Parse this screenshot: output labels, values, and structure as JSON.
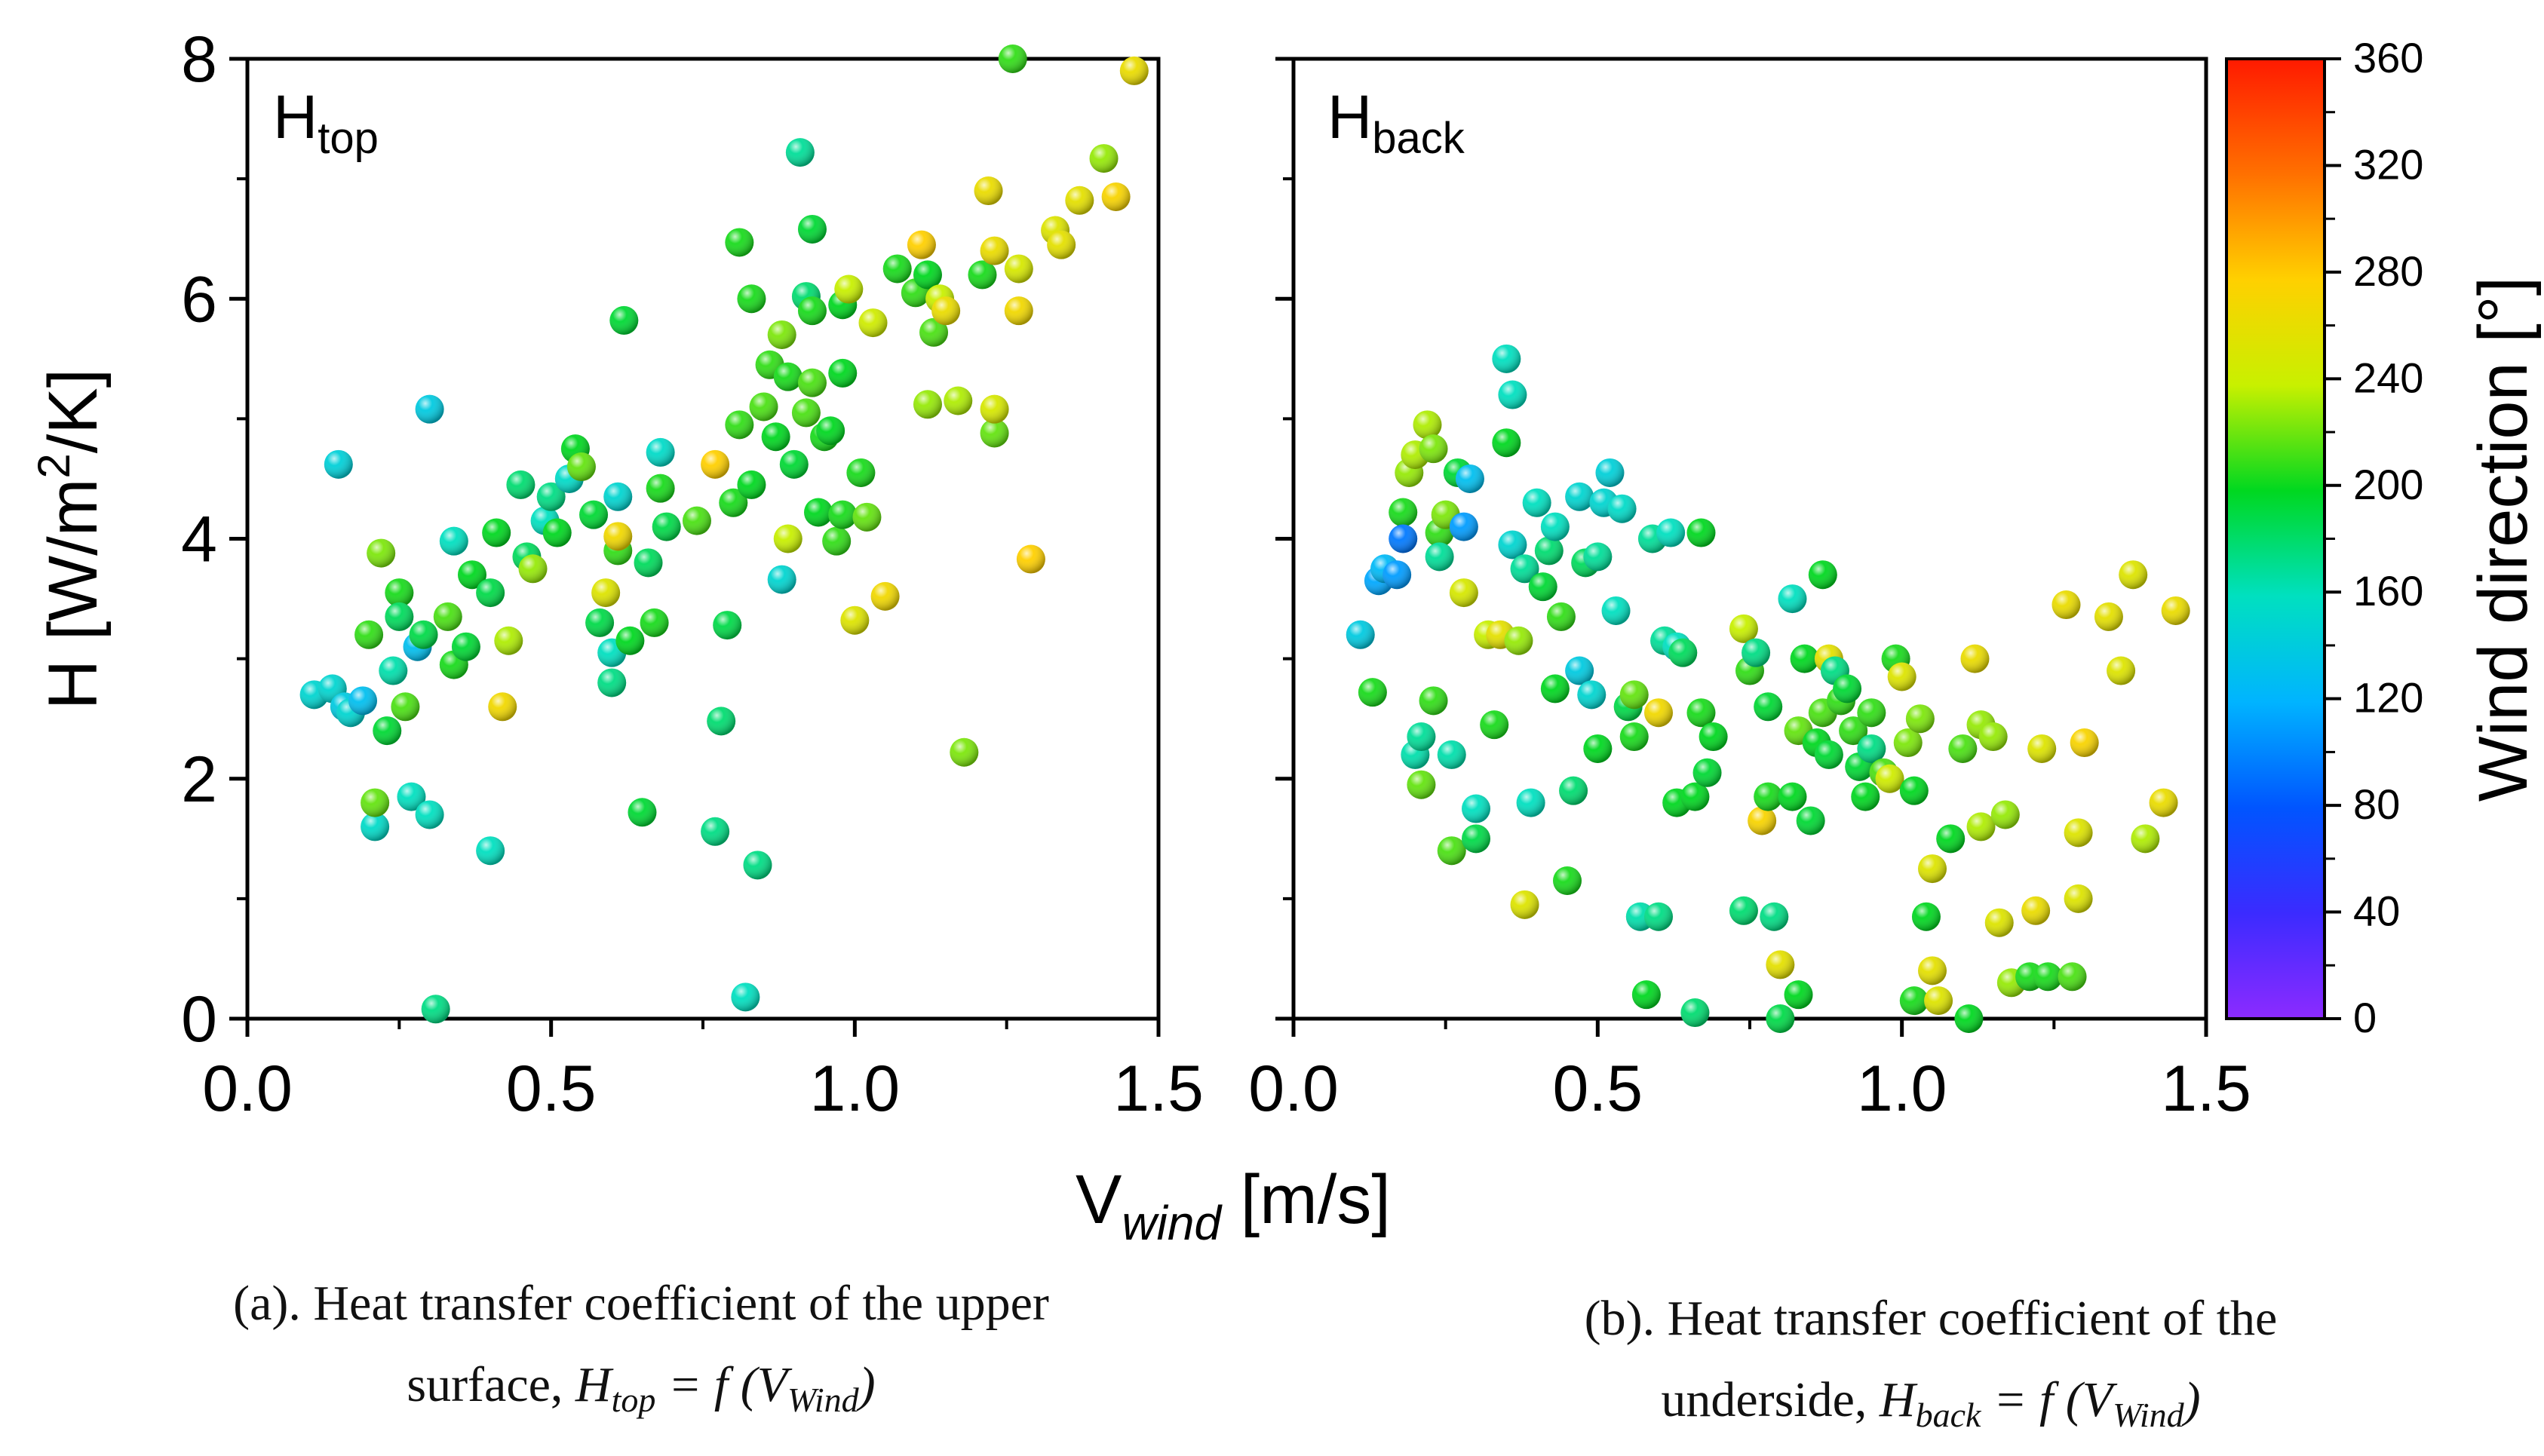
{
  "chart_data": [
    {
      "type": "scatter",
      "panel": "a",
      "label_main": "H",
      "label_sub": "top",
      "ylabel": "H [W/m2/K]",
      "xlabel": "V wind [m/s]",
      "xlim": [
        0,
        1.5
      ],
      "ylim": [
        0,
        8
      ],
      "xticks": [
        "0.0",
        "0.5",
        "1.0",
        "1.5"
      ],
      "yticks": [
        "0",
        "2",
        "4",
        "6",
        "8"
      ],
      "color_by": "Wind direction",
      "points": [
        [
          0.11,
          2.7,
          150
        ],
        [
          0.14,
          2.75,
          150
        ],
        [
          0.16,
          2.6,
          140
        ],
        [
          0.17,
          2.55,
          150
        ],
        [
          0.19,
          2.65,
          130
        ],
        [
          0.15,
          4.62,
          145
        ],
        [
          0.21,
          1.6,
          155
        ],
        [
          0.21,
          1.8,
          220
        ],
        [
          0.2,
          3.2,
          210
        ],
        [
          0.22,
          3.88,
          225
        ],
        [
          0.23,
          2.4,
          195
        ],
        [
          0.24,
          2.9,
          165
        ],
        [
          0.25,
          3.55,
          205
        ],
        [
          0.25,
          3.35,
          185
        ],
        [
          0.26,
          2.6,
          215
        ],
        [
          0.27,
          1.85,
          160
        ],
        [
          0.28,
          3.1,
          130
        ],
        [
          0.29,
          3.2,
          190
        ],
        [
          0.3,
          5.08,
          140
        ],
        [
          0.3,
          1.7,
          160
        ],
        [
          0.31,
          0.08,
          175
        ],
        [
          0.33,
          3.35,
          215
        ],
        [
          0.34,
          2.95,
          205
        ],
        [
          0.34,
          3.98,
          160
        ],
        [
          0.36,
          3.1,
          195
        ],
        [
          0.37,
          3.7,
          200
        ],
        [
          0.4,
          1.4,
          160
        ],
        [
          0.4,
          3.55,
          190
        ],
        [
          0.41,
          4.05,
          200
        ],
        [
          0.42,
          2.6,
          270
        ],
        [
          0.43,
          3.15,
          235
        ],
        [
          0.45,
          4.45,
          180
        ],
        [
          0.46,
          3.85,
          185
        ],
        [
          0.47,
          3.75,
          230
        ],
        [
          0.49,
          4.15,
          160
        ],
        [
          0.5,
          4.35,
          175
        ],
        [
          0.51,
          4.05,
          200
        ],
        [
          0.53,
          4.5,
          155
        ],
        [
          0.54,
          4.75,
          200
        ],
        [
          0.55,
          4.6,
          220
        ],
        [
          0.57,
          4.2,
          195
        ],
        [
          0.58,
          3.3,
          190
        ],
        [
          0.59,
          3.55,
          255
        ],
        [
          0.6,
          3.05,
          160
        ],
        [
          0.6,
          2.8,
          175
        ],
        [
          0.61,
          3.9,
          210
        ],
        [
          0.61,
          4.35,
          150
        ],
        [
          0.62,
          5.82,
          195
        ],
        [
          0.61,
          4.02,
          270
        ],
        [
          0.63,
          3.15,
          200
        ],
        [
          0.65,
          1.72,
          195
        ],
        [
          0.66,
          3.8,
          185
        ],
        [
          0.67,
          3.3,
          205
        ],
        [
          0.68,
          4.72,
          155
        ],
        [
          0.68,
          4.42,
          205
        ],
        [
          0.69,
          4.1,
          190
        ],
        [
          0.74,
          4.15,
          215
        ],
        [
          0.77,
          4.62,
          280
        ],
        [
          0.78,
          2.48,
          180
        ],
        [
          0.79,
          3.28,
          190
        ],
        [
          0.77,
          1.56,
          175
        ],
        [
          0.8,
          4.3,
          205
        ],
        [
          0.81,
          4.95,
          210
        ],
        [
          0.82,
          0.18,
          160
        ],
        [
          0.81,
          6.47,
          205
        ],
        [
          0.83,
          4.45,
          200
        ],
        [
          0.83,
          6.0,
          205
        ],
        [
          0.84,
          1.28,
          175
        ],
        [
          0.85,
          5.1,
          215
        ],
        [
          0.86,
          5.45,
          210
        ],
        [
          0.87,
          4.85,
          200
        ],
        [
          0.88,
          5.7,
          225
        ],
        [
          0.89,
          5.35,
          205
        ],
        [
          0.88,
          3.66,
          150
        ],
        [
          0.89,
          4.0,
          240
        ],
        [
          0.9,
          4.62,
          195
        ],
        [
          0.91,
          7.22,
          170
        ],
        [
          0.92,
          5.05,
          215
        ],
        [
          0.92,
          6.02,
          180
        ],
        [
          0.93,
          5.9,
          205
        ],
        [
          0.93,
          5.3,
          215
        ],
        [
          0.93,
          6.58,
          195
        ],
        [
          0.94,
          4.22,
          200
        ],
        [
          0.95,
          4.85,
          205
        ],
        [
          0.96,
          4.9,
          200
        ],
        [
          0.97,
          3.98,
          210
        ],
        [
          0.98,
          4.2,
          205
        ],
        [
          0.98,
          5.95,
          200
        ],
        [
          0.98,
          5.38,
          200
        ],
        [
          0.99,
          6.08,
          240
        ],
        [
          1.0,
          3.32,
          255
        ],
        [
          1.01,
          4.55,
          205
        ],
        [
          1.02,
          4.18,
          220
        ],
        [
          1.03,
          5.8,
          245
        ],
        [
          1.05,
          3.52,
          270
        ],
        [
          1.07,
          6.25,
          205
        ],
        [
          1.1,
          6.05,
          210
        ],
        [
          1.11,
          6.45,
          280
        ],
        [
          1.12,
          6.2,
          200
        ],
        [
          1.12,
          5.12,
          230
        ],
        [
          1.13,
          5.72,
          215
        ],
        [
          1.14,
          6.0,
          240
        ],
        [
          1.15,
          5.9,
          265
        ],
        [
          1.17,
          5.15,
          235
        ],
        [
          1.18,
          2.22,
          225
        ],
        [
          1.21,
          6.2,
          205
        ],
        [
          1.22,
          6.9,
          265
        ],
        [
          1.23,
          6.4,
          265
        ],
        [
          1.23,
          4.88,
          220
        ],
        [
          1.23,
          5.08,
          250
        ],
        [
          1.26,
          8.0,
          210
        ],
        [
          1.27,
          5.9,
          270
        ],
        [
          1.27,
          6.25,
          250
        ],
        [
          1.29,
          3.83,
          280
        ],
        [
          1.33,
          6.57,
          255
        ],
        [
          1.34,
          6.45,
          260
        ],
        [
          1.37,
          6.82,
          260
        ],
        [
          1.41,
          7.17,
          230
        ],
        [
          1.43,
          6.85,
          275
        ],
        [
          1.46,
          7.9,
          265
        ]
      ]
    },
    {
      "type": "scatter",
      "panel": "b",
      "label_main": "H",
      "label_sub": "back",
      "xlim": [
        0,
        1.5
      ],
      "ylim": [
        0,
        8
      ],
      "xticks": [
        "0.0",
        "0.5",
        "1.0",
        "1.5"
      ],
      "color_by": "Wind direction",
      "points": [
        [
          0.11,
          3.2,
          140
        ],
        [
          0.13,
          2.72,
          205
        ],
        [
          0.14,
          3.65,
          115
        ],
        [
          0.15,
          3.75,
          125
        ],
        [
          0.17,
          3.7,
          110
        ],
        [
          0.18,
          4.22,
          205
        ],
        [
          0.18,
          4.0,
          95
        ],
        [
          0.19,
          4.55,
          230
        ],
        [
          0.2,
          4.7,
          235
        ],
        [
          0.2,
          2.2,
          165
        ],
        [
          0.21,
          1.95,
          220
        ],
        [
          0.21,
          2.35,
          170
        ],
        [
          0.22,
          4.95,
          235
        ],
        [
          0.23,
          2.65,
          210
        ],
        [
          0.23,
          4.75,
          225
        ],
        [
          0.24,
          4.05,
          210
        ],
        [
          0.24,
          3.85,
          170
        ],
        [
          0.25,
          4.2,
          225
        ],
        [
          0.26,
          1.4,
          215
        ],
        [
          0.26,
          2.2,
          165
        ],
        [
          0.27,
          4.55,
          195
        ],
        [
          0.28,
          4.1,
          110
        ],
        [
          0.28,
          3.55,
          250
        ],
        [
          0.29,
          4.5,
          130
        ],
        [
          0.3,
          1.75,
          160
        ],
        [
          0.3,
          1.5,
          190
        ],
        [
          0.32,
          3.2,
          240
        ],
        [
          0.33,
          2.45,
          205
        ],
        [
          0.34,
          3.2,
          260
        ],
        [
          0.35,
          4.8,
          200
        ],
        [
          0.35,
          5.5,
          160
        ],
        [
          0.36,
          3.95,
          150
        ],
        [
          0.36,
          5.2,
          160
        ],
        [
          0.37,
          3.15,
          230
        ],
        [
          0.38,
          3.75,
          170
        ],
        [
          0.38,
          0.95,
          255
        ],
        [
          0.39,
          1.8,
          160
        ],
        [
          0.4,
          4.3,
          160
        ],
        [
          0.41,
          3.6,
          195
        ],
        [
          0.42,
          3.9,
          180
        ],
        [
          0.43,
          4.1,
          160
        ],
        [
          0.43,
          2.75,
          200
        ],
        [
          0.44,
          3.35,
          210
        ],
        [
          0.45,
          1.15,
          205
        ],
        [
          0.46,
          1.9,
          180
        ],
        [
          0.47,
          4.35,
          150
        ],
        [
          0.47,
          2.9,
          140
        ],
        [
          0.48,
          3.8,
          185
        ],
        [
          0.49,
          2.7,
          150
        ],
        [
          0.5,
          2.25,
          200
        ],
        [
          0.5,
          3.85,
          170
        ],
        [
          0.51,
          4.3,
          150
        ],
        [
          0.52,
          4.55,
          145
        ],
        [
          0.53,
          3.4,
          160
        ],
        [
          0.54,
          4.25,
          155
        ],
        [
          0.55,
          2.6,
          190
        ],
        [
          0.56,
          2.35,
          205
        ],
        [
          0.56,
          2.7,
          220
        ],
        [
          0.57,
          0.85,
          165
        ],
        [
          0.58,
          0.2,
          200
        ],
        [
          0.59,
          4.0,
          170
        ],
        [
          0.6,
          2.55,
          270
        ],
        [
          0.6,
          0.85,
          175
        ],
        [
          0.61,
          3.15,
          170
        ],
        [
          0.62,
          4.05,
          160
        ],
        [
          0.63,
          1.8,
          200
        ],
        [
          0.63,
          3.1,
          160
        ],
        [
          0.64,
          3.05,
          185
        ],
        [
          0.66,
          1.85,
          200
        ],
        [
          0.66,
          0.05,
          180
        ],
        [
          0.67,
          2.55,
          205
        ],
        [
          0.67,
          4.05,
          200
        ],
        [
          0.68,
          2.05,
          195
        ],
        [
          0.69,
          2.35,
          200
        ],
        [
          0.74,
          0.9,
          180
        ],
        [
          0.74,
          3.25,
          240
        ],
        [
          0.75,
          2.9,
          210
        ],
        [
          0.76,
          3.05,
          175
        ],
        [
          0.77,
          1.65,
          275
        ],
        [
          0.78,
          1.85,
          205
        ],
        [
          0.78,
          2.6,
          195
        ],
        [
          0.79,
          0.85,
          175
        ],
        [
          0.8,
          0.0,
          190
        ],
        [
          0.8,
          0.45,
          260
        ],
        [
          0.82,
          3.5,
          160
        ],
        [
          0.82,
          1.85,
          200
        ],
        [
          0.83,
          0.2,
          200
        ],
        [
          0.83,
          2.4,
          220
        ],
        [
          0.84,
          3.0,
          200
        ],
        [
          0.85,
          1.65,
          195
        ],
        [
          0.86,
          2.3,
          200
        ],
        [
          0.87,
          3.7,
          200
        ],
        [
          0.87,
          2.55,
          215
        ],
        [
          0.88,
          3.0,
          260
        ],
        [
          0.88,
          2.2,
          195
        ],
        [
          0.89,
          2.9,
          175
        ],
        [
          0.9,
          2.65,
          210
        ],
        [
          0.91,
          2.75,
          195
        ],
        [
          0.92,
          2.4,
          210
        ],
        [
          0.93,
          2.1,
          195
        ],
        [
          0.94,
          1.85,
          200
        ],
        [
          0.95,
          2.25,
          175
        ],
        [
          0.95,
          2.55,
          210
        ],
        [
          0.97,
          2.05,
          215
        ],
        [
          0.98,
          2.0,
          245
        ],
        [
          0.99,
          3.0,
          205
        ],
        [
          1.0,
          2.85,
          255
        ],
        [
          1.01,
          2.3,
          225
        ],
        [
          1.02,
          1.9,
          200
        ],
        [
          1.02,
          0.15,
          205
        ],
        [
          1.03,
          2.5,
          225
        ],
        [
          1.04,
          0.85,
          200
        ],
        [
          1.05,
          1.25,
          255
        ],
        [
          1.05,
          0.4,
          260
        ],
        [
          1.06,
          0.15,
          255
        ],
        [
          1.08,
          1.5,
          200
        ],
        [
          1.1,
          2.25,
          215
        ],
        [
          1.11,
          0.0,
          200
        ],
        [
          1.12,
          3.0,
          265
        ],
        [
          1.13,
          2.45,
          230
        ],
        [
          1.13,
          1.6,
          235
        ],
        [
          1.15,
          2.35,
          230
        ],
        [
          1.16,
          0.8,
          255
        ],
        [
          1.17,
          1.7,
          230
        ],
        [
          1.18,
          0.3,
          230
        ],
        [
          1.21,
          0.35,
          205
        ],
        [
          1.22,
          0.9,
          265
        ],
        [
          1.23,
          2.25,
          255
        ],
        [
          1.24,
          0.35,
          205
        ],
        [
          1.27,
          3.45,
          265
        ],
        [
          1.28,
          0.35,
          215
        ],
        [
          1.29,
          1.55,
          255
        ],
        [
          1.29,
          1.0,
          255
        ],
        [
          1.3,
          2.3,
          275
        ],
        [
          1.34,
          3.35,
          260
        ],
        [
          1.36,
          2.9,
          255
        ],
        [
          1.38,
          3.7,
          255
        ],
        [
          1.4,
          1.5,
          235
        ],
        [
          1.43,
          1.8,
          265
        ],
        [
          1.45,
          3.4,
          265
        ]
      ]
    }
  ],
  "colorbar": {
    "title": "Wind direction [°]",
    "min": 0,
    "max": 360,
    "ticks": [
      "0",
      "40",
      "80",
      "120",
      "160",
      "200",
      "240",
      "280",
      "320",
      "360"
    ]
  },
  "shared_xlabel": {
    "main": "V",
    "sub": "wind",
    "unit": " [m/s]"
  },
  "ylabel": {
    "main": "H [W/m",
    "sup": "2",
    "rest": "/K]"
  },
  "captions": {
    "a_line1": "(a). Heat transfer coefficient of the upper",
    "a_line2_text": "surface, ",
    "a_line2_lhs": "H",
    "a_line2_lhs_sub": "top",
    "a_line2_rhs": " = f (V",
    "a_line2_rhs_sub": "Wind",
    "a_line2_close": ")",
    "b_line1": "(b). Heat transfer coefficient of the",
    "b_line2_text": "underside, ",
    "b_line2_lhs": "H",
    "b_line2_lhs_sub": "back",
    "b_line2_rhs": " = f (V",
    "b_line2_rhs_sub": "Wind",
    "b_line2_close": ")"
  }
}
